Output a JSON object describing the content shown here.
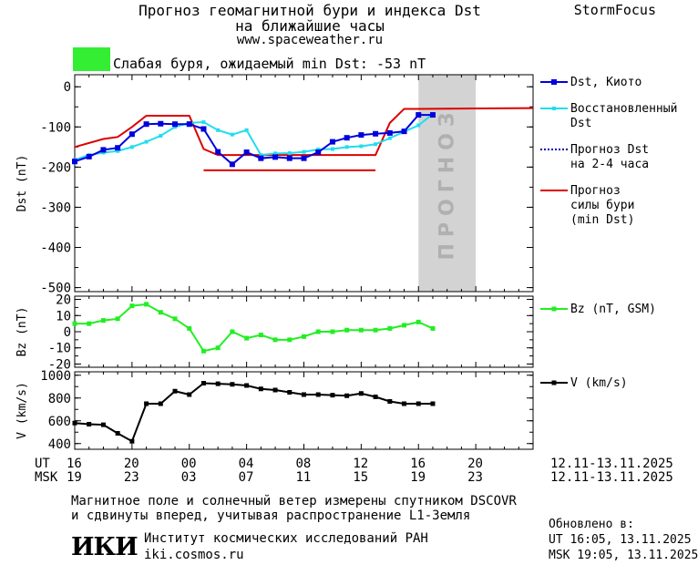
{
  "header": {
    "title_line1": "Прогноз геомагнитной бури и индекса Dst",
    "title_line2": "на ближайшие часы",
    "brand": "StormFocus",
    "url": "www.spaceweather.ru",
    "status": "Слабая буря, ожидаемый min Dst: -53 nT",
    "status_color": "#33ee33"
  },
  "legend": {
    "dst_kyoto": "Dst, Киото",
    "dst_restored": [
      "Восстановленный",
      "Dst"
    ],
    "dst_forecast": [
      "Прогноз Dst",
      "на 2-4 часа"
    ],
    "storm_forecast": [
      "Прогноз",
      "силы бури",
      "(min Dst)"
    ],
    "bz": "Bz (nT, GSM)",
    "v": "V (km/s)"
  },
  "forecast_label": "ПРОГНОЗ",
  "time_axis": {
    "ut_label": "UT",
    "msk_label": "MSK",
    "ut_ticks": [
      "16",
      "20",
      "00",
      "04",
      "08",
      "12",
      "16",
      "20"
    ],
    "msk_ticks": [
      "19",
      "23",
      "03",
      "07",
      "11",
      "15",
      "19",
      "23"
    ],
    "ut_range": "12.11-13.11.2025",
    "msk_range": "12.11-13.11.2025"
  },
  "footer": {
    "line1": "Магнитное поле и солнечный ветер измерены спутником DSCOVR",
    "line2": "и сдвинуты вперед, учитывая распространение L1-Земля",
    "logo": "ИКИ",
    "institute": "Институт космических исследований РАН",
    "site": "iki.cosmos.ru",
    "updated_label": "Обновлено в:",
    "updated_ut": "UT   16:05, 13.11.2025",
    "updated_msk": "MSK 19:05, 13.11.2025"
  },
  "colors": {
    "dst_kyoto": "#0000dd",
    "dst_restored": "#22ddee",
    "forecast": "#0000aa",
    "storm": "#dd0000",
    "bz": "#22ee22",
    "v": "#000000",
    "forecast_band": "#d3d3d3"
  },
  "chart_data": [
    {
      "type": "line",
      "ylabel": "Dst (nT)",
      "xlim": [
        -8,
        24
      ],
      "ylim": [
        -510,
        30
      ],
      "y_ticks": [
        0,
        -100,
        -200,
        -300,
        -400,
        -500
      ],
      "forecast_band": [
        16,
        20
      ],
      "series": [
        {
          "name": "Dst, Киото",
          "x": [
            -8,
            -7,
            -6,
            -5,
            -4,
            -3,
            -2,
            -1,
            0,
            1,
            2,
            3,
            4,
            5,
            6,
            7,
            8,
            9,
            10,
            11,
            12,
            13,
            14,
            15,
            16,
            17
          ],
          "values": [
            -186,
            -174,
            -157,
            -152,
            -118,
            -93,
            -92,
            -93,
            -93,
            -105,
            -162,
            -193,
            -163,
            -178,
            -175,
            -178,
            -178,
            -163,
            -137,
            -127,
            -120,
            -117,
            -115,
            -111,
            -70,
            -70
          ]
        },
        {
          "name": "Восстановленный Dst",
          "x": [
            -8,
            -7,
            -6,
            -5,
            -4,
            -3,
            -2,
            -1,
            0,
            1,
            2,
            3,
            4,
            5,
            6,
            7,
            8,
            9,
            10,
            11,
            12,
            13,
            14,
            15,
            16,
            17
          ],
          "values": [
            -182,
            -170,
            -164,
            -160,
            -150,
            -137,
            -122,
            -100,
            -90,
            -88,
            -108,
            -119,
            -108,
            -170,
            -166,
            -165,
            -162,
            -156,
            -155,
            -150,
            -148,
            -143,
            -128,
            -112,
            -96,
            -68
          ]
        },
        {
          "name": "Прогноз силы бури (min Dst)",
          "segments": [
            {
              "x": [
                -8,
                -6,
                -5,
                -4,
                -3,
                -1,
                0,
                1,
                2,
                13,
                14,
                15,
                16,
                24
              ],
              "values": [
                -150,
                -130,
                -125,
                -100,
                -72,
                -72,
                -72,
                -155,
                -170,
                -170,
                -90,
                -55,
                -55,
                -53
              ]
            },
            {
              "x": [
                1,
                13
              ],
              "values": [
                -208,
                -208
              ]
            }
          ]
        }
      ]
    },
    {
      "type": "line",
      "ylabel": "Bz (nT)",
      "xlim": [
        -8,
        24
      ],
      "ylim": [
        -22,
        22
      ],
      "y_ticks": [
        20,
        10,
        0,
        -10,
        -20
      ],
      "series": [
        {
          "name": "Bz (nT, GSM)",
          "x": [
            -8,
            -7,
            -6,
            -5,
            -4,
            -3,
            -2,
            -1,
            0,
            1,
            2,
            3,
            4,
            5,
            6,
            7,
            8,
            9,
            10,
            11,
            12,
            13,
            14,
            15,
            16,
            17
          ],
          "values": [
            5,
            5,
            7,
            8,
            16,
            17,
            12,
            8,
            2,
            -12,
            -10,
            0,
            -4,
            -2,
            -5,
            -5,
            -3,
            0,
            0,
            1,
            1,
            1,
            2,
            4,
            6,
            2
          ]
        }
      ]
    },
    {
      "type": "line",
      "ylabel": "V (km/s)",
      "xlim": [
        -8,
        24
      ],
      "ylim": [
        350,
        1030
      ],
      "y_ticks": [
        1000,
        800,
        600,
        400
      ],
      "series": [
        {
          "name": "V (km/s)",
          "x": [
            -8,
            -7,
            -6,
            -5,
            -4,
            -3,
            -2,
            -1,
            0,
            1,
            2,
            3,
            4,
            5,
            6,
            7,
            8,
            9,
            10,
            11,
            12,
            13,
            14,
            15,
            16,
            17
          ],
          "values": [
            580,
            570,
            565,
            490,
            420,
            750,
            750,
            860,
            830,
            930,
            925,
            920,
            910,
            880,
            870,
            850,
            830,
            830,
            825,
            820,
            840,
            810,
            770,
            750,
            750,
            750
          ]
        }
      ]
    }
  ]
}
